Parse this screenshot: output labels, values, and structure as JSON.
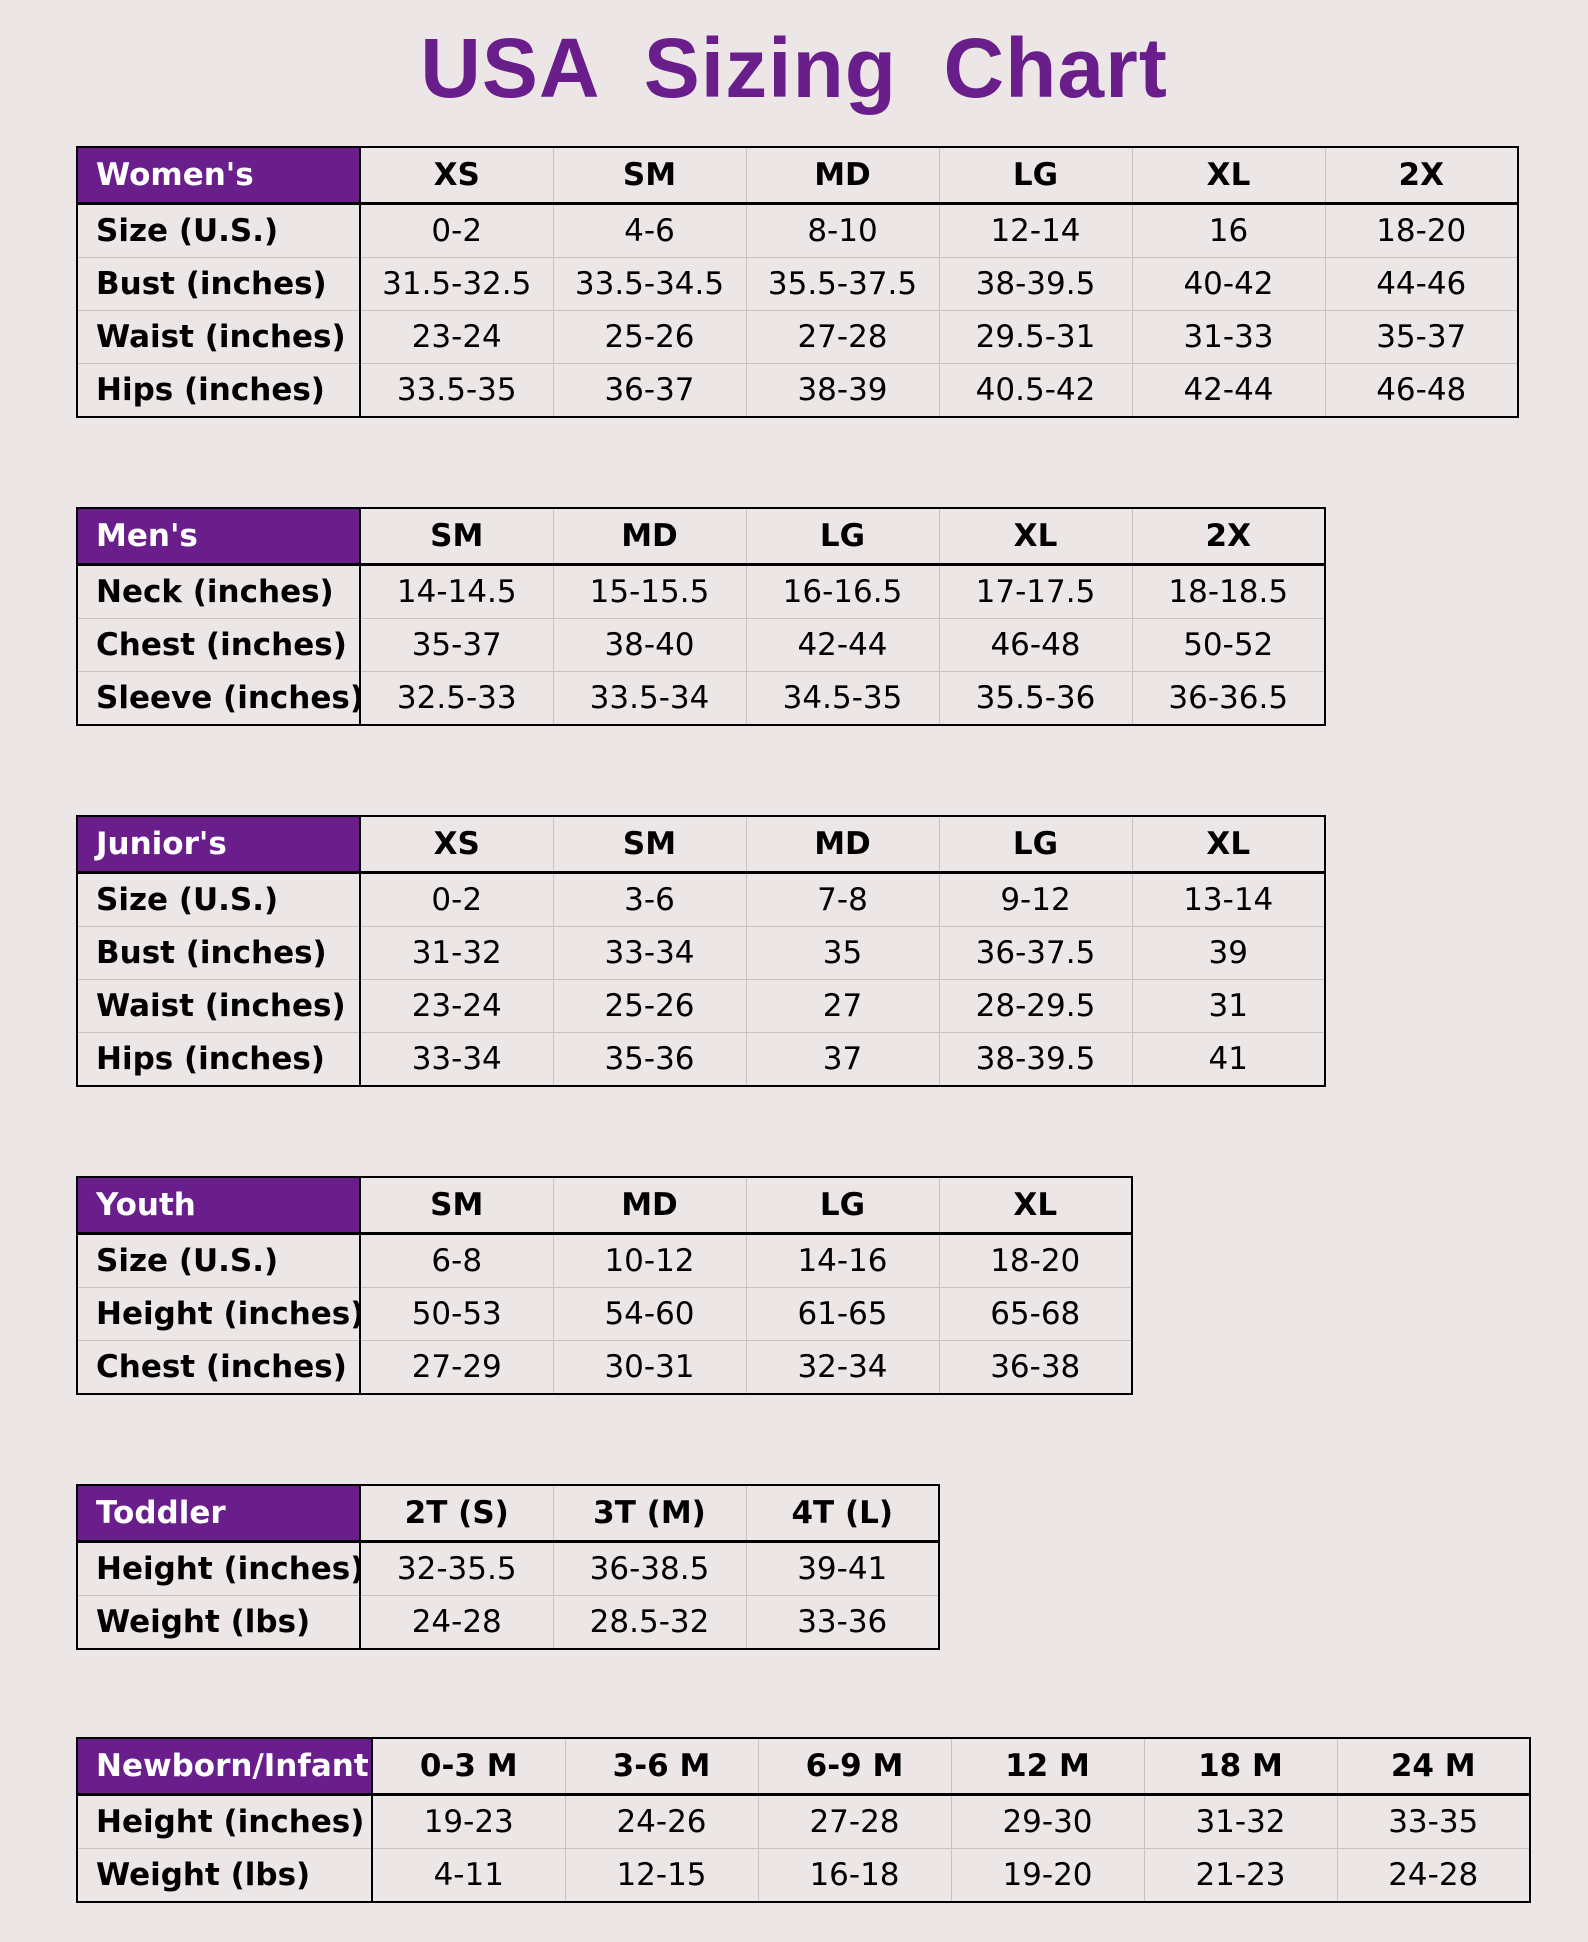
{
  "title": "USA  Sizing Chart",
  "tables": {
    "womens": {
      "category": "Women's",
      "sizes": [
        "XS",
        "SM",
        "MD",
        "LG",
        "XL",
        "2X"
      ],
      "rows": [
        {
          "label": "Size (U.S.)",
          "values": [
            "0-2",
            "4-6",
            "8-10",
            "12-14",
            "16",
            "18-20"
          ]
        },
        {
          "label": "Bust (inches)",
          "values": [
            "31.5-32.5",
            "33.5-34.5",
            "35.5-37.5",
            "38-39.5",
            "40-42",
            "44-46"
          ]
        },
        {
          "label": "Waist (inches)",
          "values": [
            "23-24",
            "25-26",
            "27-28",
            "29.5-31",
            "31-33",
            "35-37"
          ]
        },
        {
          "label": "Hips (inches)",
          "values": [
            "33.5-35",
            "36-37",
            "38-39",
            "40.5-42",
            "42-44",
            "46-48"
          ]
        }
      ]
    },
    "mens": {
      "category": "Men's",
      "sizes": [
        "SM",
        "MD",
        "LG",
        "XL",
        "2X"
      ],
      "rows": [
        {
          "label": "Neck (inches)",
          "values": [
            "14-14.5",
            "15-15.5",
            "16-16.5",
            "17-17.5",
            "18-18.5"
          ]
        },
        {
          "label": "Chest (inches)",
          "values": [
            "35-37",
            "38-40",
            "42-44",
            "46-48",
            "50-52"
          ]
        },
        {
          "label": "Sleeve (inches)",
          "values": [
            "32.5-33",
            "33.5-34",
            "34.5-35",
            "35.5-36",
            "36-36.5"
          ]
        }
      ]
    },
    "juniors": {
      "category": "Junior's",
      "sizes": [
        "XS",
        "SM",
        "MD",
        "LG",
        "XL"
      ],
      "rows": [
        {
          "label": "Size (U.S.)",
          "values": [
            "0-2",
            "3-6",
            "7-8",
            "9-12",
            "13-14"
          ]
        },
        {
          "label": "Bust (inches)",
          "values": [
            "31-32",
            "33-34",
            "35",
            "36-37.5",
            "39"
          ]
        },
        {
          "label": "Waist (inches)",
          "values": [
            "23-24",
            "25-26",
            "27",
            "28-29.5",
            "31"
          ]
        },
        {
          "label": "Hips (inches)",
          "values": [
            "33-34",
            "35-36",
            "37",
            "38-39.5",
            "41"
          ]
        }
      ]
    },
    "youth": {
      "category": "Youth",
      "sizes": [
        "SM",
        "MD",
        "LG",
        "XL"
      ],
      "rows": [
        {
          "label": "Size (U.S.)",
          "values": [
            "6-8",
            "10-12",
            "14-16",
            "18-20"
          ]
        },
        {
          "label": "Height (inches)",
          "values": [
            "50-53",
            "54-60",
            "61-65",
            "65-68"
          ]
        },
        {
          "label": "Chest (inches)",
          "values": [
            "27-29",
            "30-31",
            "32-34",
            "36-38"
          ]
        }
      ]
    },
    "toddler": {
      "category": "Toddler",
      "sizes": [
        "2T (S)",
        "3T (M)",
        "4T (L)"
      ],
      "rows": [
        {
          "label": "Height (inches)",
          "values": [
            "32-35.5",
            "36-38.5",
            "39-41"
          ]
        },
        {
          "label": "Weight (lbs)",
          "values": [
            "24-28",
            "28.5-32",
            "33-36"
          ]
        }
      ]
    },
    "infant": {
      "category": "Newborn/Infant",
      "sizes": [
        "0-3 M",
        "3-6 M",
        "6-9 M",
        "12 M",
        "18 M",
        "24 M"
      ],
      "rows": [
        {
          "label": "Height (inches)",
          "values": [
            "19-23",
            "24-26",
            "27-28",
            "29-30",
            "31-32",
            "33-35"
          ]
        },
        {
          "label": "Weight (lbs)",
          "values": [
            "4-11",
            "12-15",
            "16-18",
            "19-20",
            "21-23",
            "24-28"
          ]
        }
      ]
    }
  }
}
